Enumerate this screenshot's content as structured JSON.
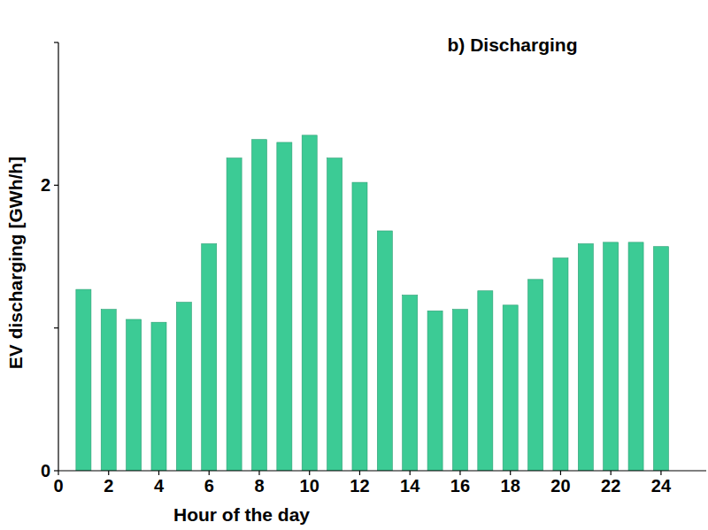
{
  "chart_data": {
    "type": "bar",
    "title": "b) Discharging",
    "x_label": "Hour of the day",
    "y_label": "EV discharging [GWh/h]",
    "x": [
      1,
      2,
      3,
      4,
      5,
      6,
      7,
      8,
      9,
      10,
      11,
      12,
      13,
      14,
      15,
      16,
      17,
      18,
      19,
      20,
      21,
      22,
      23,
      24
    ],
    "values": [
      1.27,
      1.13,
      1.06,
      1.04,
      1.18,
      1.59,
      2.19,
      2.32,
      2.3,
      2.35,
      2.19,
      2.02,
      1.68,
      1.23,
      1.12,
      1.13,
      1.26,
      1.16,
      1.34,
      1.49,
      1.59,
      1.6,
      1.6,
      1.57
    ],
    "color": "#3ccb95",
    "xlim": [
      0,
      25.8
    ],
    "xticks": [
      0,
      2,
      4,
      6,
      8,
      10,
      12,
      14,
      16,
      18,
      20,
      22,
      24
    ],
    "ylim": [
      0,
      3
    ],
    "yticks": [
      0,
      {
        "value": 1,
        "label": null
      },
      2
    ],
    "grid": false
  }
}
